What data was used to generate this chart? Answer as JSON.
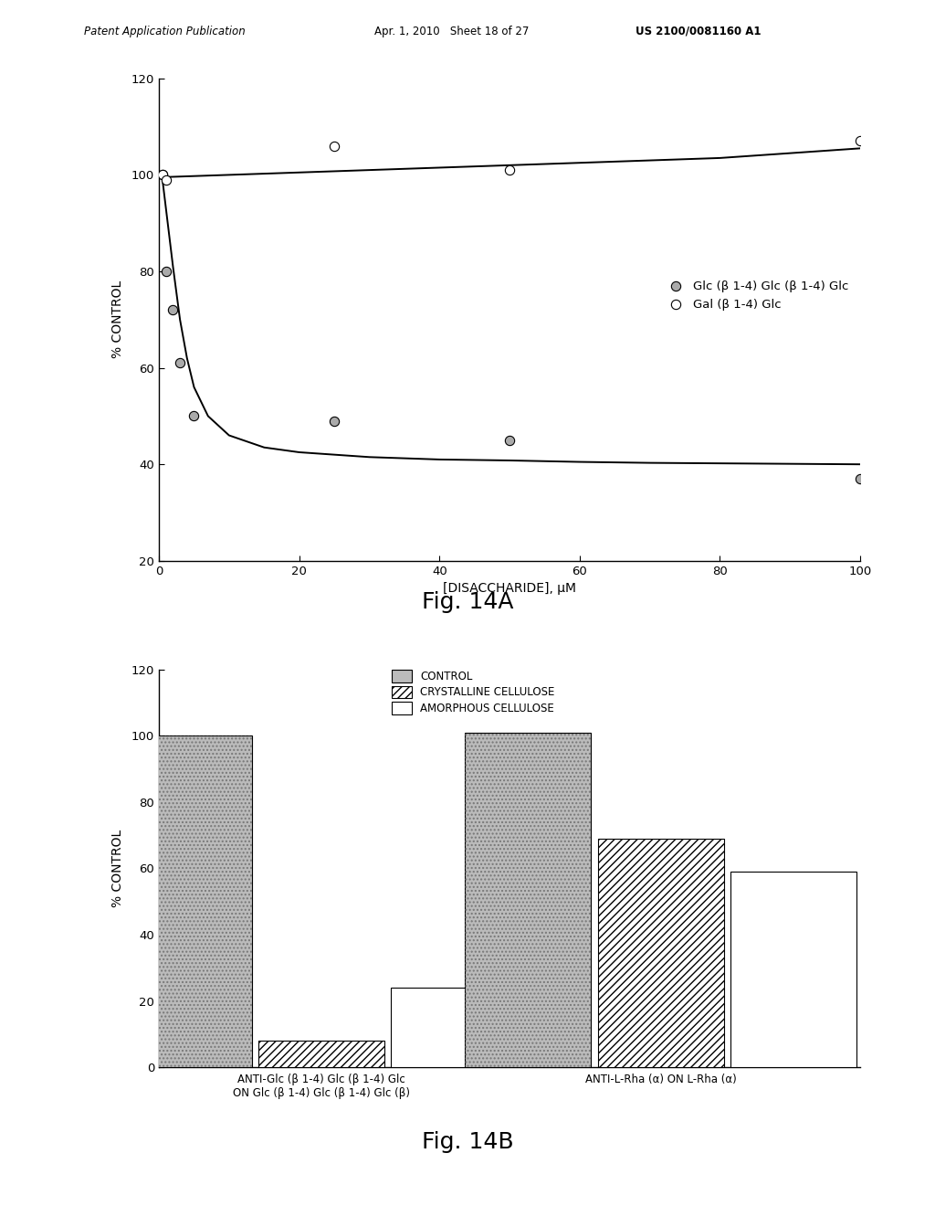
{
  "header_left": "Patent Application Publication",
  "header_mid": "Apr. 1, 2010   Sheet 18 of 27",
  "header_right": "US 2100/0081160 A1",
  "fig14A": {
    "title": "Fig. 14A",
    "xlabel": "[DISACCHARIDE], μM",
    "ylabel": "% CONTROL",
    "xlim": [
      0,
      100
    ],
    "ylim": [
      20,
      120
    ],
    "yticks": [
      20,
      40,
      60,
      80,
      100,
      120
    ],
    "xticks": [
      0,
      20,
      40,
      60,
      80,
      100
    ],
    "curve1_label": "Glc (β 1-4) Glc (β 1-4) Glc",
    "curve2_label": "Gal (β 1-4) Glc",
    "glc_points_x": [
      0.5,
      1,
      2,
      3,
      5,
      25,
      50,
      100
    ],
    "glc_points_y": [
      100,
      80,
      72,
      61,
      50,
      49,
      45,
      37
    ],
    "gal_points_x": [
      0.5,
      1,
      25,
      50,
      100
    ],
    "gal_points_y": [
      100,
      99,
      106,
      101,
      107
    ],
    "glc_fit_x": [
      0.05,
      0.1,
      0.2,
      0.5,
      1,
      1.5,
      2,
      3,
      4,
      5,
      7,
      10,
      15,
      20,
      25,
      30,
      40,
      50,
      60,
      70,
      80,
      90,
      100
    ],
    "glc_fit_y": [
      100,
      100,
      100,
      99,
      93,
      87,
      81,
      70,
      62,
      56,
      50,
      46,
      43.5,
      42.5,
      42,
      41.5,
      41,
      40.8,
      40.5,
      40.3,
      40.2,
      40.1,
      40
    ],
    "gal_fit_x": [
      0,
      20,
      40,
      60,
      80,
      100
    ],
    "gal_fit_y": [
      99.5,
      100.5,
      101.5,
      102.5,
      103.5,
      105.5
    ]
  },
  "fig14B": {
    "title": "Fig. 14B",
    "ylabel": "% CONTROL",
    "ylim": [
      0,
      120
    ],
    "yticks": [
      0,
      20,
      40,
      60,
      80,
      100,
      120
    ],
    "legend_labels": [
      "CONTROL",
      "CRYSTALLINE CELLULOSE",
      "AMORPHOUS CELLULOSE"
    ],
    "group1_label": "ANTI-Glc (β 1-4) Glc (β 1-4) Glc\nON Glc (β 1-4) Glc (β 1-4) Glc (β)",
    "group2_label": "ANTI-L-Rha (α) ON L-Rha (α)",
    "group1_values": [
      100,
      8,
      24
    ],
    "group2_values": [
      101,
      69,
      59
    ],
    "bar_width": 0.18
  },
  "background_color": "#ffffff",
  "text_color": "#000000"
}
